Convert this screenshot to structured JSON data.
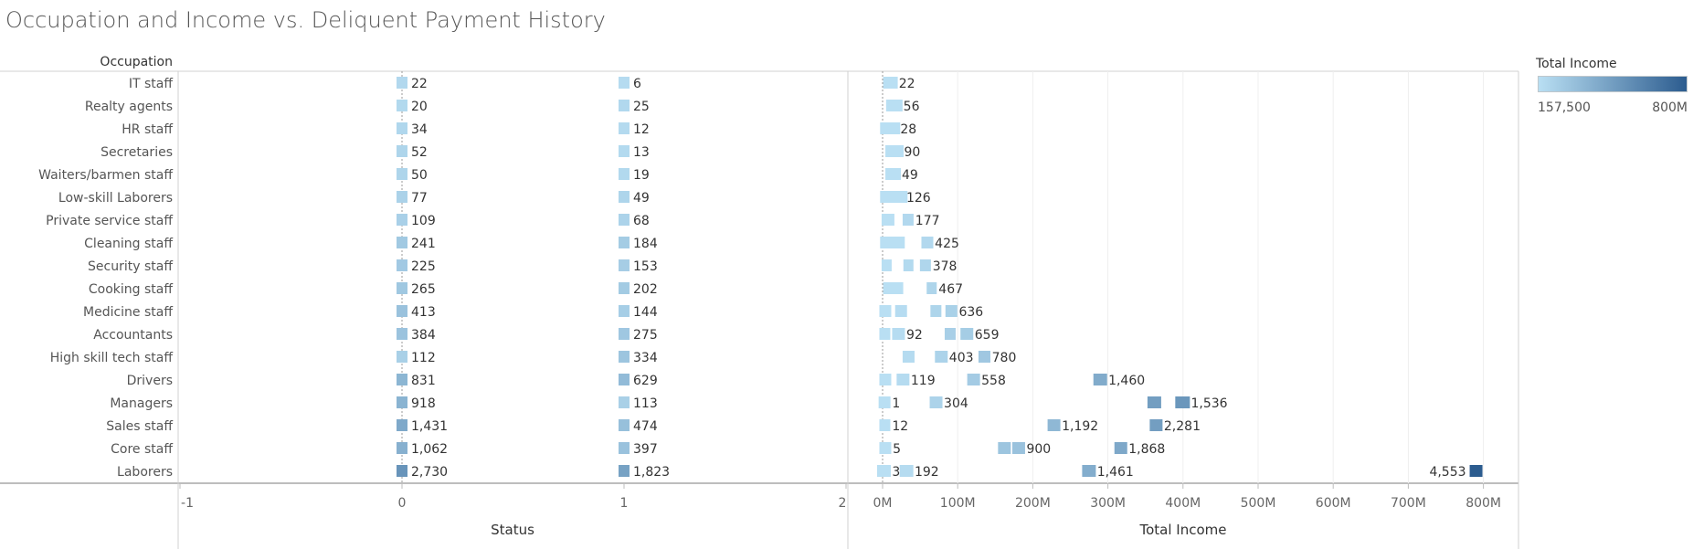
{
  "title": "Occupation and Income vs. Deliquent Payment History",
  "chart_data": [
    {
      "type": "bar",
      "row_header": "Occupation",
      "xlabel": "Status",
      "x_ticks": [
        "-1",
        "0",
        "1",
        "2"
      ],
      "xlim": [
        -1,
        2
      ],
      "categories": [
        "IT staff",
        "Realty agents",
        "HR staff",
        "Secretaries",
        "Waiters/barmen staff",
        "Low-skill Laborers",
        "Private service staff",
        "Cleaning staff",
        "Security staff",
        "Cooking staff",
        "Medicine staff",
        "Accountants",
        "High skill tech staff",
        "Drivers",
        "Managers",
        "Sales staff",
        "Core staff",
        "Laborers"
      ],
      "series": [
        {
          "status": 0,
          "values": [
            22,
            20,
            34,
            52,
            50,
            77,
            109,
            241,
            225,
            265,
            413,
            384,
            112,
            831,
            918,
            1431,
            1062,
            2730
          ],
          "labels": [
            "22",
            "20",
            "34",
            "52",
            "50",
            "77",
            "109",
            "241",
            "225",
            "265",
            "413",
            "384",
            "112",
            "831",
            "918",
            "1,431",
            "1,062",
            "2,730"
          ]
        },
        {
          "status": 1,
          "values": [
            6,
            25,
            12,
            13,
            19,
            49,
            68,
            184,
            153,
            202,
            144,
            275,
            334,
            629,
            113,
            474,
            397,
            1823
          ],
          "labels": [
            "6",
            "25",
            "12",
            "13",
            "19",
            "49",
            "68",
            "184",
            "153",
            "202",
            "144",
            "275",
            "334",
            "629",
            "113",
            "474",
            "397",
            "1,823"
          ]
        }
      ]
    },
    {
      "type": "scatter",
      "xlabel": "Total Income",
      "x_ticks": [
        "0M",
        "100M",
        "200M",
        "300M",
        "400M",
        "500M",
        "600M",
        "700M",
        "800M"
      ],
      "xlim": [
        0,
        850
      ],
      "unit": "M",
      "color_legend": {
        "title": "Total Income",
        "min_label": "157,500",
        "max_label": "800M",
        "color_min": "#b9dff3",
        "color_max": "#2c5c8f"
      },
      "rows": [
        {
          "occupation": "IT staff",
          "marks": [
            {
              "x": 8,
              "w": 16,
              "c": 0
            }
          ],
          "labels": [
            {
              "text": "22",
              "after": 24
            }
          ]
        },
        {
          "occupation": "Realty agents",
          "marks": [
            {
              "x": 12,
              "w": 18,
              "c": 0
            }
          ],
          "labels": [
            {
              "text": "56",
              "after": 30
            }
          ]
        },
        {
          "occupation": "HR staff",
          "marks": [
            {
              "x": 4,
              "w": 22,
              "c": 0
            }
          ],
          "labels": [
            {
              "text": "28",
              "after": 26
            }
          ]
        },
        {
          "occupation": "Secretaries",
          "marks": [
            {
              "x": 11,
              "w": 20,
              "c": 0
            }
          ],
          "labels": [
            {
              "text": "90",
              "after": 31
            }
          ]
        },
        {
          "occupation": "Waiters/barmen staff",
          "marks": [
            {
              "x": 11,
              "w": 17,
              "c": 0
            }
          ],
          "labels": [
            {
              "text": "49",
              "after": 28
            }
          ]
        },
        {
          "occupation": "Low-skill Laborers",
          "marks": [
            {
              "x": 4,
              "w": 30,
              "c": 0
            }
          ],
          "labels": [
            {
              "text": "126",
              "after": 34
            }
          ]
        },
        {
          "occupation": "Private service staff",
          "marks": [
            {
              "x": 6,
              "w": 14,
              "c": 0
            },
            {
              "x": 34,
              "w": 12,
              "c": 0.05
            }
          ],
          "labels": [
            {
              "text": "177",
              "after": 46
            }
          ]
        },
        {
          "occupation": "Cleaning staff",
          "marks": [
            {
              "x": 4,
              "w": 27,
              "c": 0
            },
            {
              "x": 59,
              "w": 13,
              "c": 0.05
            }
          ],
          "labels": [
            {
              "text": "425",
              "after": 72
            }
          ]
        },
        {
          "occupation": "Security staff",
          "marks": [
            {
              "x": 6,
              "w": 11,
              "c": 0
            },
            {
              "x": 35,
              "w": 11,
              "c": 0.04
            },
            {
              "x": 57,
              "w": 12,
              "c": 0.07
            }
          ],
          "labels": [
            {
              "text": "378",
              "after": 69
            }
          ]
        },
        {
          "occupation": "Cooking staff",
          "marks": [
            {
              "x": 8,
              "w": 22,
              "c": 0
            },
            {
              "x": 66,
              "w": 11,
              "c": 0.08
            }
          ],
          "labels": [
            {
              "text": "467",
              "after": 77
            }
          ]
        },
        {
          "occupation": "Medicine staff",
          "marks": [
            {
              "x": 3,
              "w": 13,
              "c": 0
            },
            {
              "x": 24,
              "w": 13,
              "c": 0.02
            },
            {
              "x": 71,
              "w": 12,
              "c": 0.08
            },
            {
              "x": 91,
              "w": 13,
              "c": 0.11
            }
          ],
          "labels": [
            {
              "text": "636",
              "after": 104
            }
          ]
        },
        {
          "occupation": "Accountants",
          "marks": [
            {
              "x": 3,
              "w": 12,
              "c": 0
            },
            {
              "x": 20,
              "w": 14,
              "c": 0.02
            },
            {
              "x": 90,
              "w": 12,
              "c": 0.12
            },
            {
              "x": 111,
              "w": 14,
              "c": 0.14
            }
          ],
          "labels": [
            {
              "text": "92",
              "after": 34
            },
            {
              "text": "659",
              "after": 125
            }
          ]
        },
        {
          "occupation": "High skill tech staff",
          "marks": [
            {
              "x": 34,
              "w": 13,
              "c": 0.03
            },
            {
              "x": 77,
              "w": 14,
              "c": 0.09
            },
            {
              "x": 135,
              "w": 13,
              "c": 0.18
            }
          ],
          "labels": [
            {
              "text": "403",
              "after": 91
            },
            {
              "text": "780",
              "after": 148
            }
          ]
        },
        {
          "occupation": "Drivers",
          "marks": [
            {
              "x": 3,
              "w": 13,
              "c": 0
            },
            {
              "x": 26,
              "w": 14,
              "c": 0.03
            },
            {
              "x": 120,
              "w": 14,
              "c": 0.15
            },
            {
              "x": 288,
              "w": 15,
              "c": 0.4
            }
          ],
          "labels": [
            {
              "text": "119",
              "after": 40
            },
            {
              "text": "558",
              "after": 134
            },
            {
              "text": "1,460",
              "after": 303
            }
          ]
        },
        {
          "occupation": "Managers",
          "marks": [
            {
              "x": 2,
              "w": 13,
              "c": 0
            },
            {
              "x": 70,
              "w": 14,
              "c": 0.09
            },
            {
              "x": 360,
              "w": 15,
              "c": 0.5
            },
            {
              "x": 397,
              "w": 16,
              "c": 0.55
            }
          ],
          "labels": [
            {
              "text": "1",
              "after": 15
            },
            {
              "text": "304",
              "after": 84
            },
            {
              "text": "1,536",
              "after": 413
            }
          ]
        },
        {
          "occupation": "Sales staff",
          "marks": [
            {
              "x": 3,
              "w": 12,
              "c": 0
            },
            {
              "x": 227,
              "w": 14,
              "c": 0.3
            },
            {
              "x": 363,
              "w": 14,
              "c": 0.5
            }
          ],
          "labels": [
            {
              "text": "12",
              "after": 15
            },
            {
              "text": "1,192",
              "after": 241
            },
            {
              "text": "2,281",
              "after": 377
            }
          ]
        },
        {
          "occupation": "Core staff",
          "marks": [
            {
              "x": 3,
              "w": 13,
              "c": 0
            },
            {
              "x": 161,
              "w": 14,
              "c": 0.2
            },
            {
              "x": 180,
              "w": 14,
              "c": 0.22
            },
            {
              "x": 316,
              "w": 14,
              "c": 0.42
            }
          ],
          "labels": [
            {
              "text": "5",
              "after": 16
            },
            {
              "text": "900",
              "after": 194
            },
            {
              "text": "1,868",
              "after": 330
            }
          ]
        },
        {
          "occupation": "Laborers",
          "marks": [
            {
              "x": 0,
              "w": 15,
              "c": 0
            },
            {
              "x": 30,
              "w": 15,
              "c": 0.03
            },
            {
              "x": 273,
              "w": 15,
              "c": 0.38
            },
            {
              "x": 789,
              "w": 14,
              "c": 1
            }
          ],
          "labels": [
            {
              "text": "3",
              "after": 15
            },
            {
              "text": "192",
              "after": 45
            },
            {
              "text": "1,461",
              "after": 288
            },
            {
              "text": "4,553",
              "before": 789
            }
          ]
        }
      ]
    }
  ]
}
